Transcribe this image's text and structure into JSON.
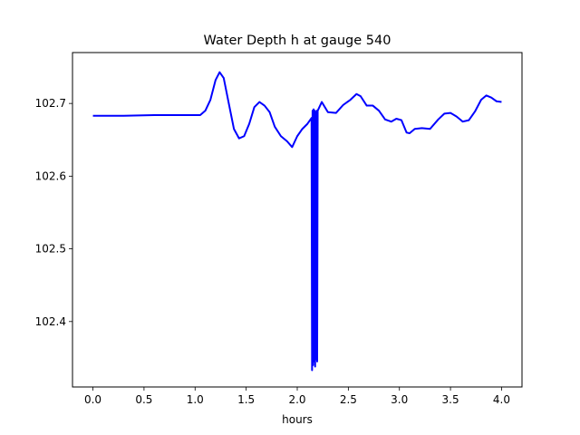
{
  "chart_data": {
    "type": "line",
    "title": "Water Depth h at gauge 540",
    "xlabel": "hours",
    "ylabel": "",
    "xlim": [
      -0.2,
      4.2
    ],
    "ylim": [
      102.31,
      102.77
    ],
    "x_ticks": [
      0.0,
      0.5,
      1.0,
      1.5,
      2.0,
      2.5,
      3.0,
      3.5,
      4.0
    ],
    "x_tick_labels": [
      "0.0",
      "0.5",
      "1.0",
      "1.5",
      "2.0",
      "2.5",
      "3.0",
      "3.5",
      "4.0"
    ],
    "y_ticks": [
      102.4,
      102.5,
      102.6,
      102.7
    ],
    "y_tick_labels": [
      "102.4",
      "102.5",
      "102.6",
      "102.7"
    ],
    "grid": false,
    "series": [
      {
        "color": "#0000ff",
        "x": [
          0.0,
          0.3,
          0.6,
          0.9,
          1.05,
          1.1,
          1.15,
          1.2,
          1.24,
          1.28,
          1.33,
          1.38,
          1.43,
          1.48,
          1.53,
          1.58,
          1.63,
          1.68,
          1.73,
          1.78,
          1.84,
          1.9,
          1.95,
          2.0,
          2.05,
          2.1,
          2.14,
          2.145,
          2.15,
          2.155,
          2.16,
          2.165,
          2.17,
          2.175,
          2.18,
          2.185,
          2.19,
          2.195,
          2.2,
          2.24,
          2.3,
          2.38,
          2.45,
          2.52,
          2.58,
          2.62,
          2.68,
          2.74,
          2.8,
          2.86,
          2.92,
          2.97,
          3.02,
          3.07,
          3.1,
          3.15,
          3.22,
          3.3,
          3.38,
          3.44,
          3.5,
          3.56,
          3.62,
          3.68,
          3.74,
          3.8,
          3.85,
          3.9,
          3.95,
          4.0
        ],
        "y": [
          102.683,
          102.683,
          102.684,
          102.684,
          102.684,
          102.69,
          102.705,
          102.732,
          102.743,
          102.735,
          102.7,
          102.665,
          102.652,
          102.655,
          102.672,
          102.695,
          102.702,
          102.697,
          102.688,
          102.668,
          102.655,
          102.648,
          102.64,
          102.655,
          102.665,
          102.672,
          102.68,
          102.333,
          102.69,
          102.34,
          102.692,
          102.345,
          102.69,
          102.338,
          102.688,
          102.348,
          102.69,
          102.345,
          102.69,
          102.702,
          102.688,
          102.687,
          102.698,
          102.705,
          102.713,
          102.71,
          102.697,
          102.697,
          102.69,
          102.678,
          102.675,
          102.679,
          102.677,
          102.66,
          102.659,
          102.665,
          102.666,
          102.665,
          102.678,
          102.686,
          102.687,
          102.682,
          102.675,
          102.677,
          102.689,
          102.705,
          102.711,
          102.708,
          102.703,
          102.702
        ]
      }
    ]
  }
}
